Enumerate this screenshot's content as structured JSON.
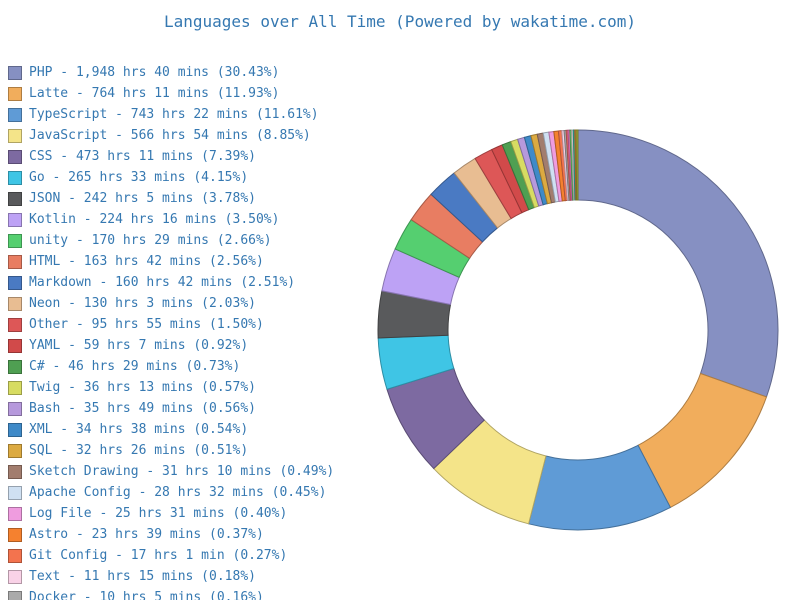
{
  "title": "Languages over All Time (Powered by wakatime.com)",
  "colors": {
    "text": "#3578b1",
    "background": "#ffffff"
  },
  "chart_data": {
    "type": "pie",
    "subtype": "donut",
    "title": "Languages over All Time (Powered by wakatime.com)",
    "start": "top",
    "direction": "clockwise",
    "legend_position": "left",
    "legend_format": "{name} - {time} ({pct}%)",
    "series": [
      {
        "name": "PHP",
        "time": "1,948 hrs 40 mins",
        "pct": "30.43",
        "color": "#8690c2"
      },
      {
        "name": "Latte",
        "time": "764 hrs 11 mins",
        "pct": "11.93",
        "color": "#f1ad5c"
      },
      {
        "name": "TypeScript",
        "time": "743 hrs 22 mins",
        "pct": "11.61",
        "color": "#5f9bd6"
      },
      {
        "name": "JavaScript",
        "time": "566 hrs 54 mins",
        "pct": "8.85",
        "color": "#f4e489"
      },
      {
        "name": "CSS",
        "time": "473 hrs 11 mins",
        "pct": "7.39",
        "color": "#7d6aa1"
      },
      {
        "name": "Go",
        "time": "265 hrs 33 mins",
        "pct": "4.15",
        "color": "#3fc5e5"
      },
      {
        "name": "JSON",
        "time": "242 hrs 5 mins",
        "pct": "3.78",
        "color": "#595a5c"
      },
      {
        "name": "Kotlin",
        "time": "224 hrs 16 mins",
        "pct": "3.50",
        "color": "#bda2f5"
      },
      {
        "name": "unity",
        "time": "170 hrs 29 mins",
        "pct": "2.66",
        "color": "#55cf70"
      },
      {
        "name": "HTML",
        "time": "163 hrs 42 mins",
        "pct": "2.56",
        "color": "#e87d62"
      },
      {
        "name": "Markdown",
        "time": "160 hrs 42 mins",
        "pct": "2.51",
        "color": "#4a7ac3"
      },
      {
        "name": "Neon",
        "time": "130 hrs 3 mins",
        "pct": "2.03",
        "color": "#e8bd92"
      },
      {
        "name": "Other",
        "time": "95 hrs 55 mins",
        "pct": "1.50",
        "color": "#dd5757"
      },
      {
        "name": "YAML",
        "time": "59 hrs 7 mins",
        "pct": "0.92",
        "color": "#d14a4a"
      },
      {
        "name": "C#",
        "time": "46 hrs 29 mins",
        "pct": "0.73",
        "color": "#4f9f52"
      },
      {
        "name": "Twig",
        "time": "36 hrs 13 mins",
        "pct": "0.57",
        "color": "#d7dc62"
      },
      {
        "name": "Bash",
        "time": "35 hrs 49 mins",
        "pct": "0.56",
        "color": "#b699dc"
      },
      {
        "name": "XML",
        "time": "34 hrs 38 mins",
        "pct": "0.54",
        "color": "#3f8ac8"
      },
      {
        "name": "SQL",
        "time": "32 hrs 26 mins",
        "pct": "0.51",
        "color": "#dcaa41"
      },
      {
        "name": "Sketch Drawing",
        "time": "31 hrs 10 mins",
        "pct": "0.49",
        "color": "#a27d6e"
      },
      {
        "name": "Apache Config",
        "time": "28 hrs 32 mins",
        "pct": "0.45",
        "color": "#cfe0f2"
      },
      {
        "name": "Log File",
        "time": "25 hrs 31 mins",
        "pct": "0.40",
        "color": "#ef9cdf"
      },
      {
        "name": "Astro",
        "time": "23 hrs 39 mins",
        "pct": "0.37",
        "color": "#f5812f"
      },
      {
        "name": "Git Config",
        "time": "17 hrs 1 min",
        "pct": "0.27",
        "color": "#f3734e"
      },
      {
        "name": "Text",
        "time": "11 hrs 15 mins",
        "pct": "0.18",
        "color": "#f9d2e7"
      },
      {
        "name": "Docker",
        "time": "10 hrs 5 mins",
        "pct": "0.16",
        "color": "#aaaaaa"
      }
    ],
    "unlabeled_tail_segments": [
      {
        "pct": "0.15",
        "color": "#e26868"
      },
      {
        "pct": "0.15",
        "color": "#ee6dbc"
      },
      {
        "pct": "0.15",
        "color": "#67c06b"
      },
      {
        "pct": "0.12",
        "color": "#f6dfe6"
      },
      {
        "pct": "0.12",
        "color": "#3ab5a4"
      },
      {
        "pct": "0.10",
        "color": "#e2813c"
      },
      {
        "pct": "0.16",
        "color": "#a0a834"
      }
    ]
  }
}
